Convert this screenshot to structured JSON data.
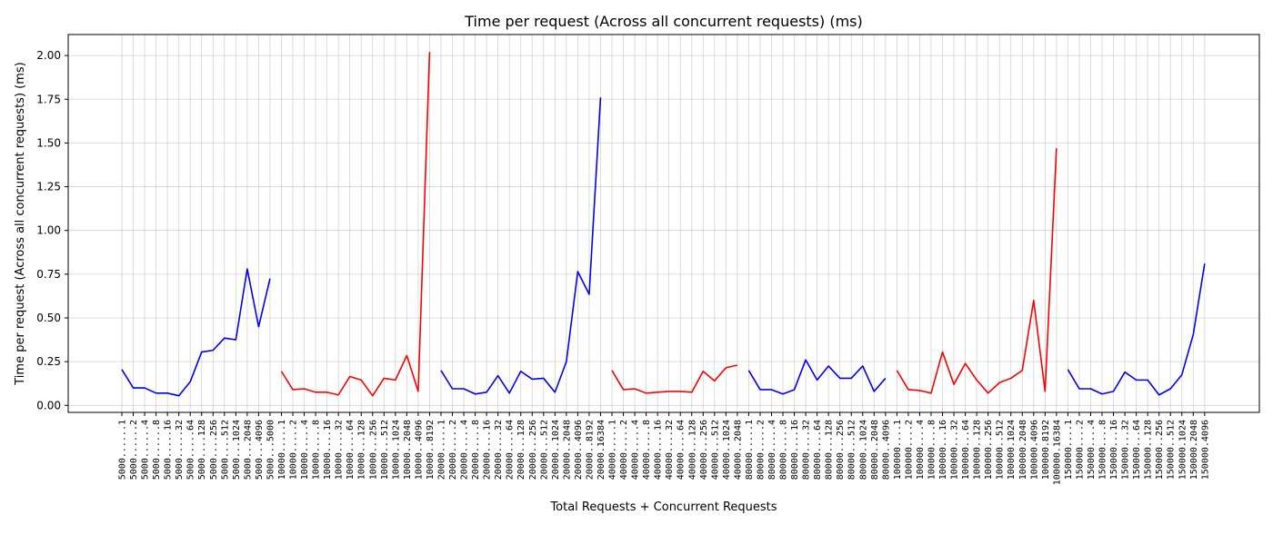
{
  "chart_data": {
    "type": "line",
    "title": "Time per request (Across all concurrent requests) (ms)",
    "xlabel": "Total Requests + Concurrent Requests",
    "ylabel": "Time per request (Across all concurrent requests) (ms)",
    "ylim": [
      -0.04,
      2.12
    ],
    "yticks": [
      "0.00",
      "0.25",
      "0.50",
      "0.75",
      "1.00",
      "1.25",
      "1.50",
      "1.75",
      "2.00"
    ],
    "ytick_values": [
      0,
      0.25,
      0.5,
      0.75,
      1.0,
      1.25,
      1.5,
      1.75,
      2.0
    ],
    "grid": true,
    "series": [
      {
        "name": "5000",
        "color": "#0000ff",
        "labels": [
          "5000......1",
          "5000......2",
          "5000......4",
          "5000......8",
          "5000.....16",
          "5000.....32",
          "5000.....64",
          "5000....128",
          "5000....256",
          "5000....512",
          "5000...1024",
          "5000...2048",
          "5000...4096",
          "5000...5000"
        ],
        "values": [
          0.205,
          0.1,
          0.1,
          0.07,
          0.07,
          0.055,
          0.135,
          0.305,
          0.315,
          0.385,
          0.375,
          0.78,
          0.45,
          0.725
        ]
      },
      {
        "name": "10000",
        "color": "#ff0000",
        "labels": [
          "10000.....1",
          "10000.....2",
          "10000.....4",
          "10000.....8",
          "10000....16",
          "10000....32",
          "10000....64",
          "10000...128",
          "10000...256",
          "10000...512",
          "10000..1024",
          "10000..2048",
          "10000..4096",
          "10000..8192"
        ],
        "values": [
          0.195,
          0.09,
          0.095,
          0.075,
          0.075,
          0.06,
          0.165,
          0.145,
          0.055,
          0.155,
          0.145,
          0.285,
          0.08,
          2.02
        ]
      },
      {
        "name": "20000",
        "color": "#0000ff",
        "labels": [
          "20000.....1",
          "20000.....2",
          "20000.....4",
          "20000.....8",
          "20000....16",
          "20000....32",
          "20000....64",
          "20000...128",
          "20000...256",
          "20000...512",
          "20000..1024",
          "20000..2048",
          "20000..4096",
          "20000..8192",
          "20000.16384"
        ],
        "values": [
          0.2,
          0.095,
          0.095,
          0.065,
          0.075,
          0.17,
          0.07,
          0.195,
          0.15,
          0.155,
          0.075,
          0.25,
          0.765,
          0.635,
          1.76
        ]
      },
      {
        "name": "40000",
        "color": "#ff0000",
        "labels": [
          "40000.....1",
          "40000.....2",
          "40000.....4",
          "40000.....8",
          "40000....16",
          "40000....32",
          "40000....64",
          "40000...128",
          "40000...256",
          "40000...512",
          "40000..1024",
          "40000..2048"
        ],
        "values": [
          0.2,
          0.09,
          0.095,
          0.07,
          0.075,
          0.08,
          0.08,
          0.075,
          0.195,
          0.14,
          0.215,
          0.23
        ]
      },
      {
        "name": "80000",
        "color": "#0000ff",
        "labels": [
          "80000.....1",
          "80000.....2",
          "80000.....4",
          "80000.....8",
          "80000....16",
          "80000....32",
          "80000....64",
          "80000...128",
          "80000...256",
          "80000...512",
          "80000..1024",
          "80000..2048",
          "80000..4096"
        ],
        "values": [
          0.2,
          0.09,
          0.09,
          0.065,
          0.09,
          0.26,
          0.145,
          0.225,
          0.155,
          0.155,
          0.225,
          0.08,
          0.155
        ]
      },
      {
        "name": "100000",
        "color": "#ff0000",
        "labels": [
          "100000....1",
          "100000....2",
          "100000....4",
          "100000....8",
          "100000...16",
          "100000...32",
          "100000...64",
          "100000..128",
          "100000..256",
          "100000..512",
          "100000.1024",
          "100000.2048",
          "100000.4096",
          "100000.8192",
          "100000.16384"
        ],
        "values": [
          0.2,
          0.09,
          0.085,
          0.07,
          0.305,
          0.12,
          0.24,
          0.145,
          0.07,
          0.13,
          0.155,
          0.2,
          0.6,
          0.08,
          1.47
        ]
      },
      {
        "name": "150000",
        "color": "#0000ff",
        "labels": [
          "150000....1",
          "150000....2",
          "150000....4",
          "150000....8",
          "150000...16",
          "150000...32",
          "150000...64",
          "150000..128",
          "150000..256",
          "150000..512",
          "150000.1024",
          "150000.2048",
          "150000.4096"
        ],
        "values": [
          0.205,
          0.095,
          0.095,
          0.065,
          0.08,
          0.19,
          0.145,
          0.145,
          0.06,
          0.095,
          0.175,
          0.405,
          0.81
        ]
      }
    ]
  }
}
